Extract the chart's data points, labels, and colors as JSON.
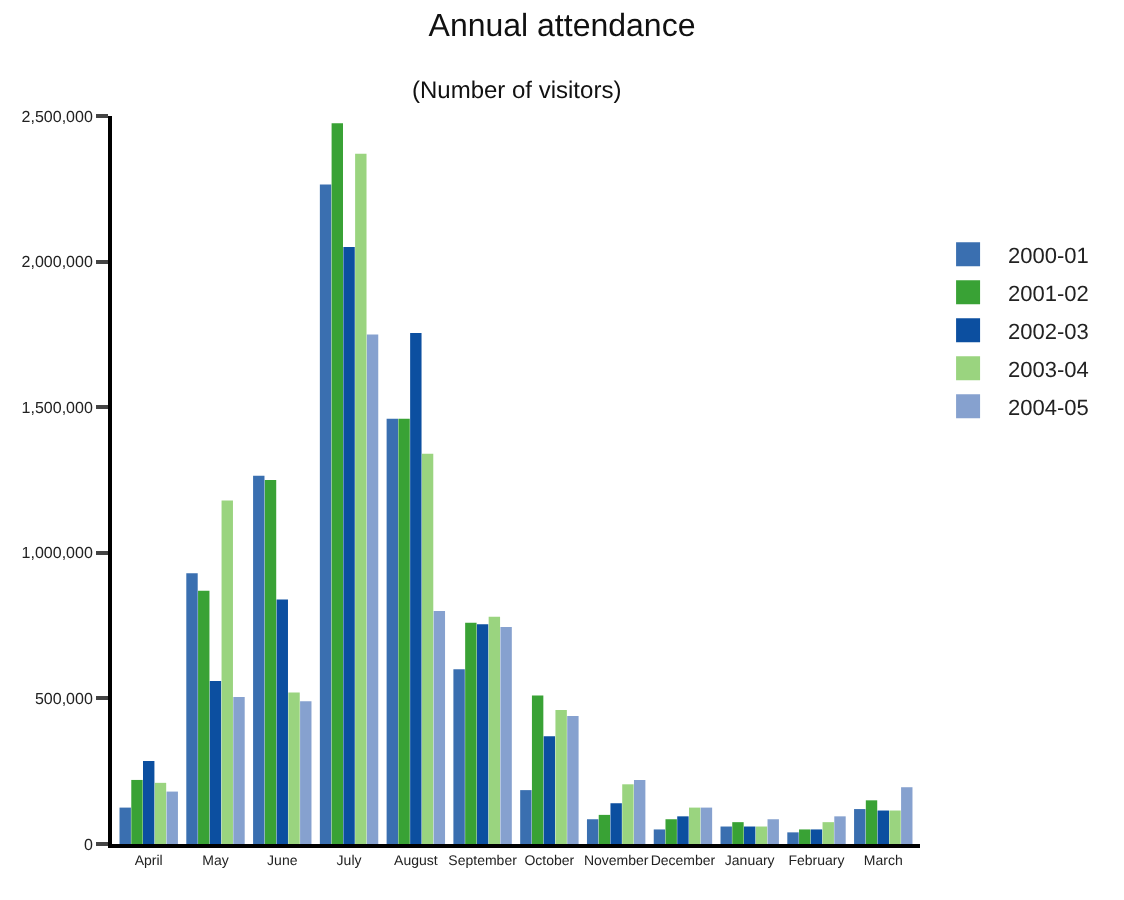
{
  "chart_data": {
    "type": "bar",
    "title": "Annual attendance",
    "subtitle": "(Number of visitors)",
    "categories": [
      "April",
      "May",
      "June",
      "July",
      "August",
      "September",
      "October",
      "November",
      "December",
      "January",
      "February",
      "March"
    ],
    "series": [
      {
        "name": "2000-01",
        "color": "#3a6fb0",
        "values": [
          125000,
          930000,
          1265000,
          2265000,
          1460000,
          600000,
          185000,
          85000,
          50000,
          60000,
          40000,
          120000
        ]
      },
      {
        "name": "2001-02",
        "color": "#39a235",
        "values": [
          220000,
          870000,
          1250000,
          2475000,
          1460000,
          760000,
          510000,
          100000,
          85000,
          75000,
          50000,
          150000
        ]
      },
      {
        "name": "2002-03",
        "color": "#0c4fa0",
        "values": [
          285000,
          560000,
          840000,
          2050000,
          1755000,
          755000,
          370000,
          140000,
          95000,
          60000,
          50000,
          115000
        ]
      },
      {
        "name": "2003-04",
        "color": "#9ad47f",
        "values": [
          210000,
          1180000,
          520000,
          2370000,
          1340000,
          780000,
          460000,
          205000,
          125000,
          60000,
          75000,
          115000
        ]
      },
      {
        "name": "2004-05",
        "color": "#86a1cf",
        "values": [
          180000,
          505000,
          490000,
          1750000,
          800000,
          745000,
          440000,
          220000,
          125000,
          85000,
          95000,
          195000
        ]
      }
    ],
    "ylim": [
      0,
      2500000
    ],
    "yticks": [
      {
        "value": 0,
        "label": "0"
      },
      {
        "value": 500000,
        "label": "500,000"
      },
      {
        "value": 1000000,
        "label": "1,000,000"
      },
      {
        "value": 1500000,
        "label": "1,500,000"
      },
      {
        "value": 2000000,
        "label": "2,000,000"
      },
      {
        "value": 2500000,
        "label": "2,500,000"
      }
    ],
    "grid": false,
    "legend": "right"
  }
}
